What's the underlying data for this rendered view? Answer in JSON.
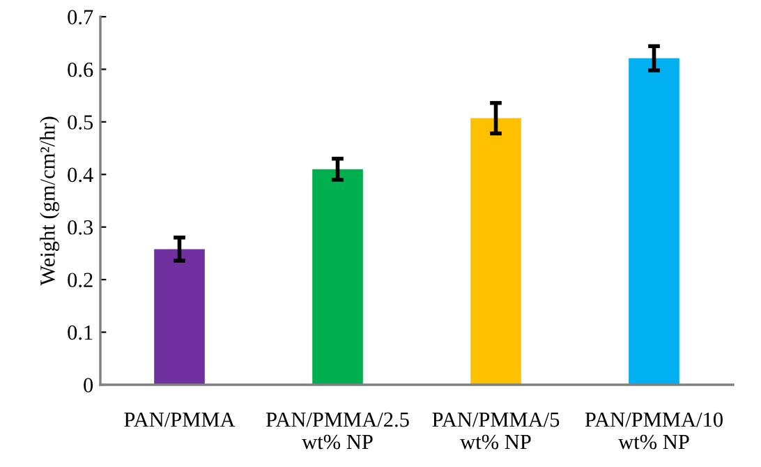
{
  "chart_data": {
    "type": "bar",
    "ylabel": "Weight (gm/cm²/hr)",
    "categories": [
      "PAN/PMMA",
      "PAN/PMMA/2.5\nwt% NP",
      "PAN/PMMA/5\nwt% NP",
      "PAN/PMMA/10\nwt% NP"
    ],
    "values": [
      0.258,
      0.41,
      0.507,
      0.621
    ],
    "errors": [
      0.022,
      0.02,
      0.029,
      0.023
    ],
    "colors": [
      "#7030a0",
      "#00b050",
      "#ffc000",
      "#00b0f0"
    ],
    "ylim": [
      0,
      0.7
    ],
    "yticks": [
      0,
      0.1,
      0.2,
      0.3,
      0.4,
      0.5,
      0.6,
      0.7
    ],
    "grid": false,
    "legend": false
  }
}
